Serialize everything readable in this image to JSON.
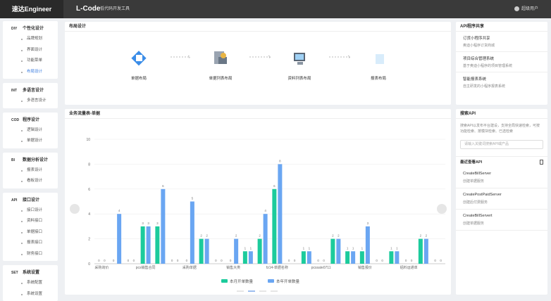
{
  "header": {
    "brand": "速达Engineer",
    "app": "L-Code",
    "subtitle": "低代码开发工具",
    "user": "超级用户",
    "help": "?"
  },
  "sidebar": [
    {
      "code": "DIY",
      "title": "个性化设计",
      "items": [
        "品牌规划",
        "界面设计",
        "功能菜单",
        "布局设计"
      ]
    },
    {
      "code": "INT",
      "title": "多语言设计",
      "items": [
        "多语言设计"
      ]
    },
    {
      "code": "COD",
      "title": "程序设计",
      "items": [
        "逻辑设计",
        "单据设计"
      ]
    },
    {
      "code": "BI",
      "title": "数据分析设计",
      "items": [
        "报表设计",
        "看板设计"
      ]
    },
    {
      "code": "API",
      "title": "接口设计",
      "items": [
        "接口设计",
        "资料接口",
        "单据接口",
        "报表接口",
        "财务接口"
      ]
    },
    {
      "code": "SET",
      "title": "系统设置",
      "items": [
        "系统配置",
        "系统设置"
      ]
    }
  ],
  "layout_card": {
    "title": "布局设计",
    "items": [
      "单据布局",
      "单据列表布局",
      "资料列表布局",
      "报表布局"
    ]
  },
  "chart_data": {
    "type": "bar",
    "title": "业务流量表-单据",
    "categories": [
      "采购询价",
      null,
      null,
      "pcs销售合同",
      null,
      null,
      "采购单据",
      null,
      null,
      "销售大类",
      null,
      null,
      "fz14-单据名称",
      null,
      null,
      "pcssale0711",
      null,
      null,
      "销售报价",
      null,
      null,
      "铝料运通单",
      null,
      null
    ],
    "series": [
      {
        "name": "本月开单数量",
        "color": "#1ccb9c",
        "values": [
          0,
          0,
          0,
          3,
          3,
          0,
          0,
          2,
          0,
          0,
          1,
          2,
          6,
          0,
          1,
          0,
          2,
          1,
          1,
          0,
          1,
          0,
          2,
          0
        ]
      },
      {
        "name": "本年开单数量",
        "color": "#6aa6f2",
        "values": [
          0,
          4,
          0,
          3,
          6,
          0,
          5,
          2,
          0,
          2,
          1,
          4,
          8,
          0,
          1,
          0,
          2,
          1,
          3,
          0,
          1,
          0,
          2,
          0
        ]
      }
    ],
    "ylim": [
      0,
      10
    ],
    "yticks": [
      0,
      2,
      4,
      6,
      8,
      10
    ],
    "grid": true,
    "legend": "bottom"
  },
  "api_share": {
    "title": "API程序共享",
    "items": [
      {
        "name": "订货小程序共享",
        "desc": "奥迪小程序订货商城"
      },
      {
        "name": "项目综合管理系统",
        "desc": "基于奥迪小程序的项目管理系统"
      },
      {
        "name": "智能报表系统",
        "desc": "自主研发的小程序报表系统"
      }
    ]
  },
  "search_api": {
    "title": "搜索API",
    "desc": "搜索API以发布平台建设，支持全局快速检索，可按功能检索、按模块检索、已选检索",
    "placeholder": "请输入关键词搜索API或产品",
    "recent_title": "最近查看API",
    "recent": [
      {
        "name": "CreateBillServer",
        "desc": "创建单据服务"
      },
      {
        "name": "CreatePostPaidServer",
        "desc": "创建后付费服务"
      },
      {
        "name": "CreateBillServert",
        "desc": "创建单据服务"
      }
    ]
  }
}
